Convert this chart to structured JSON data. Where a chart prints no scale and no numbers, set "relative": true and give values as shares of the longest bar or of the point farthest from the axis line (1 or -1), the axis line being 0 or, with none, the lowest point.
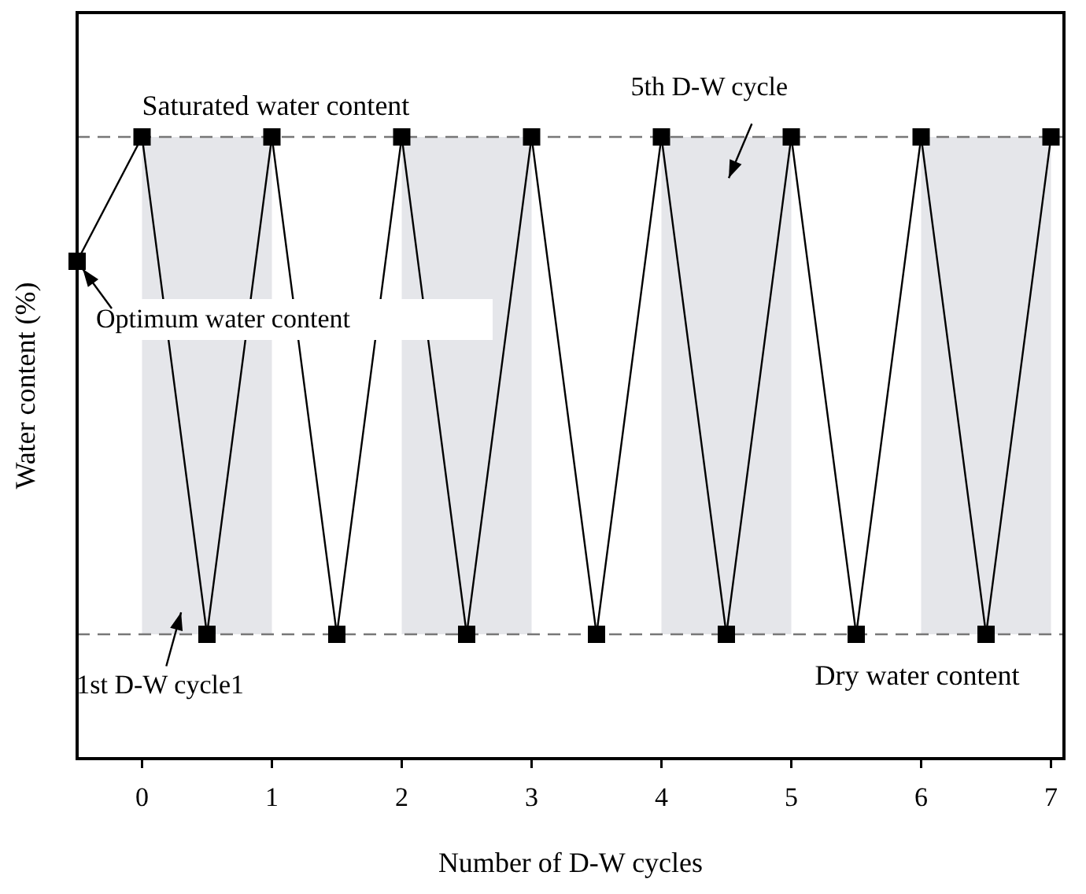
{
  "chart_data": {
    "type": "line",
    "relative": true,
    "xlabel": "Number of D-W cycles",
    "ylabel": "Water content (%)",
    "x": [
      -0.5,
      0,
      0.5,
      1,
      1.5,
      2,
      2.5,
      3,
      3.5,
      4,
      4.5,
      5,
      5.5,
      6,
      6.5,
      7
    ],
    "series": [
      {
        "color": "#000000",
        "values": [
          0.8,
          1,
          0.2,
          1,
          0.2,
          1,
          0.2,
          1,
          0.2,
          1,
          0.2,
          1,
          0.2,
          1,
          0.2,
          1
        ]
      }
    ],
    "xlim": [
      -0.5,
      7.1
    ],
    "xticks": [
      0,
      1,
      2,
      3,
      4,
      5,
      6,
      7
    ],
    "marker": "square",
    "line_style": "solid",
    "ref_lines": [
      {
        "axis": "y",
        "value": 1,
        "label": "Saturated water content",
        "color": "#777777",
        "line_style": "dashed"
      },
      {
        "axis": "y",
        "value": 0.2,
        "label": "Dry water content",
        "color": "#777777",
        "line_style": "dashed"
      }
    ],
    "bands": [
      {
        "axis": "x",
        "from": 0,
        "to": 1,
        "color": "#e5e6ea"
      },
      {
        "axis": "x",
        "from": 2,
        "to": 3,
        "color": "#e5e6ea"
      },
      {
        "axis": "x",
        "from": 4,
        "to": 5,
        "color": "#e5e6ea"
      },
      {
        "axis": "x",
        "from": 6,
        "to": 7,
        "color": "#e5e6ea"
      }
    ],
    "annotations": [
      {
        "text": "Optimum water content",
        "x": -0.5,
        "y": 0.8
      },
      "5th D-W cycle",
      "1st D-W cycle1"
    ]
  }
}
